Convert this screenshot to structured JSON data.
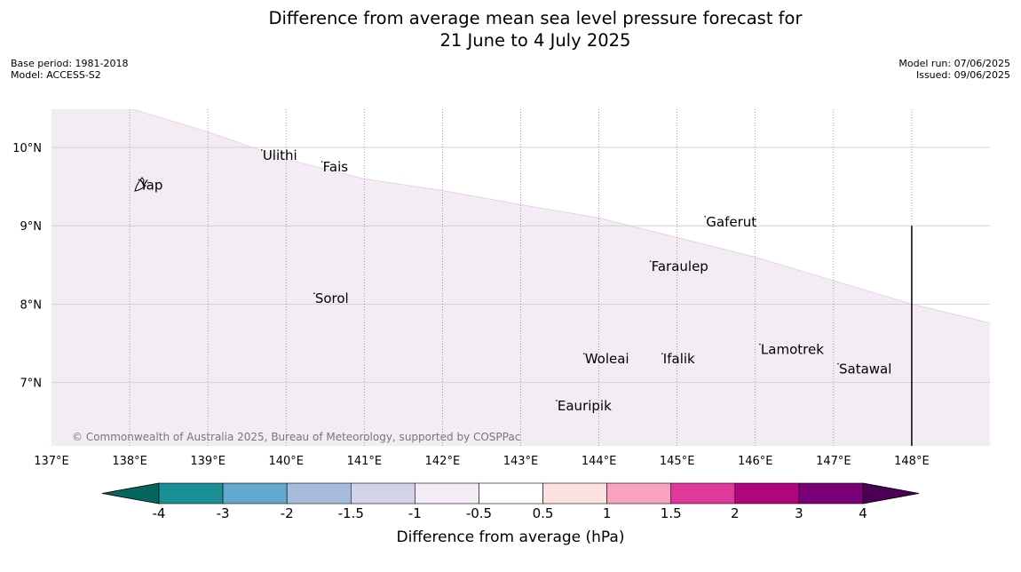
{
  "title_line1": "Difference from average mean sea level pressure forecast for",
  "title_line2": "21 June to 4 July 2025",
  "base_period": "Base period: 1981-2018",
  "model": "Model: ACCESS-S2",
  "model_run": "Model run: 07/06/2025",
  "issued": "Issued: 09/06/2025",
  "copyright": "© Commonwealth of Australia 2025, Bureau of Meteorology, supported by COSPPac",
  "map": {
    "lon_range": [
      137,
      149
    ],
    "lat_range": [
      6.2,
      10.5
    ],
    "lon_ticks": [
      137,
      138,
      139,
      140,
      141,
      142,
      143,
      144,
      145,
      146,
      147,
      148
    ],
    "lon_tick_labels": [
      "137°E",
      "138°E",
      "139°E",
      "140°E",
      "141°E",
      "142°E",
      "143°E",
      "144°E",
      "145°E",
      "146°E",
      "147°E",
      "148°E"
    ],
    "lat_ticks": [
      7,
      8,
      9,
      10
    ],
    "lat_tick_labels": [
      "7°N",
      "8°N",
      "9°N",
      "10°N"
    ],
    "field_color": "#f4ecf4",
    "field_edge": [
      [
        138,
        10.5
      ],
      [
        139,
        10.2
      ],
      [
        140,
        9.85
      ],
      [
        141,
        9.6
      ],
      [
        142,
        9.45
      ],
      [
        143,
        9.27
      ],
      [
        144,
        9.1
      ],
      [
        145,
        8.85
      ],
      [
        146,
        8.6
      ],
      [
        147,
        8.3
      ],
      [
        148,
        8.0
      ],
      [
        149,
        7.76
      ]
    ],
    "places": [
      {
        "name": "Yap",
        "lon": 138.13,
        "lat": 9.52
      },
      {
        "name": "Ulithi",
        "lon": 139.7,
        "lat": 9.9
      },
      {
        "name": "Fais",
        "lon": 140.47,
        "lat": 9.75
      },
      {
        "name": "Gaferut",
        "lon": 145.37,
        "lat": 9.05
      },
      {
        "name": "Faraulep",
        "lon": 144.67,
        "lat": 8.48
      },
      {
        "name": "Sorol",
        "lon": 140.37,
        "lat": 8.07
      },
      {
        "name": "Woleai",
        "lon": 143.82,
        "lat": 7.3
      },
      {
        "name": "Ifalik",
        "lon": 144.82,
        "lat": 7.3
      },
      {
        "name": "Lamotrek",
        "lon": 146.07,
        "lat": 7.42
      },
      {
        "name": "Satawal",
        "lon": 147.07,
        "lat": 7.17
      },
      {
        "name": "Eauripik",
        "lon": 143.47,
        "lat": 6.7
      }
    ],
    "boundary_line": {
      "lon": 148,
      "lat_from": 6.2,
      "lat_to": 9.0
    }
  },
  "colorbar": {
    "label": "Difference from average (hPa)",
    "boundaries": [
      "-4",
      "-3",
      "-2",
      "-1.5",
      "-1",
      "-0.5",
      "0.5",
      "1",
      "1.5",
      "2",
      "3",
      "4"
    ],
    "colors": [
      "#1a8f94",
      "#62a8d0",
      "#a7bcdd",
      "#d2d3e8",
      "#f4ecf4",
      "#ffffff",
      "#fde0e0",
      "#f7a2bf",
      "#e0399b",
      "#b1047f",
      "#7a0077"
    ],
    "under_color": "#04665f",
    "over_color": "#4b0055"
  }
}
